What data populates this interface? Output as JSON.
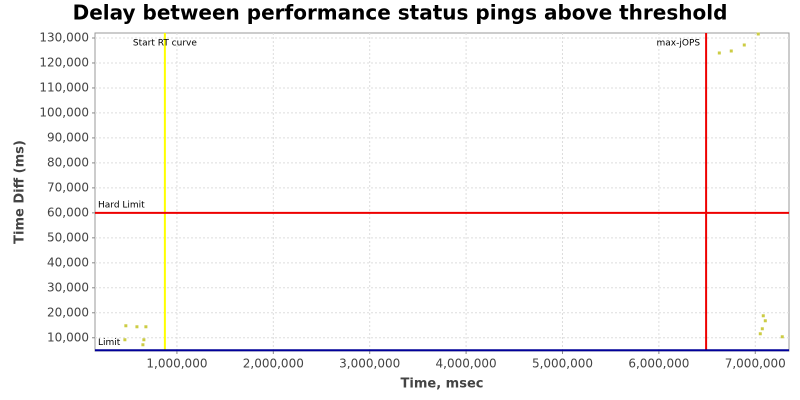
{
  "chart_data": {
    "type": "scatter",
    "title": "Delay between performance status pings above threshold",
    "x_label": "Time, msec",
    "y_label": "Time Diff (ms)",
    "xlim": [
      150000,
      7350000
    ],
    "ylim": [
      4700,
      132000
    ],
    "xticks": [
      {
        "value": 1000000,
        "label": "1,000,000"
      },
      {
        "value": 2000000,
        "label": "2,000,000"
      },
      {
        "value": 3000000,
        "label": "3,000,000"
      },
      {
        "value": 4000000,
        "label": "4,000,000"
      },
      {
        "value": 5000000,
        "label": "5,000,000"
      },
      {
        "value": 6000000,
        "label": "6,000,000"
      },
      {
        "value": 7000000,
        "label": "7,000,000"
      }
    ],
    "yticks": [
      {
        "value": 10000,
        "label": "10,000"
      },
      {
        "value": 20000,
        "label": "20,000"
      },
      {
        "value": 30000,
        "label": "30,000"
      },
      {
        "value": 40000,
        "label": "40,000"
      },
      {
        "value": 50000,
        "label": "50,000"
      },
      {
        "value": 60000,
        "label": "60,000"
      },
      {
        "value": 70000,
        "label": "70,000"
      },
      {
        "value": 80000,
        "label": "80,000"
      },
      {
        "value": 90000,
        "label": "90,000"
      },
      {
        "value": 100000,
        "label": "100,000"
      },
      {
        "value": 110000,
        "label": "110,000"
      },
      {
        "value": 120000,
        "label": "120,000"
      },
      {
        "value": 130000,
        "label": "130,000"
      }
    ],
    "grid": true,
    "color": "#cccc44",
    "x": [
      470000,
      585000,
      678000,
      460000,
      657000,
      647000,
      6627000,
      6751000,
      6886000,
      7031000,
      7083000,
      7104000,
      7073000,
      7052000,
      7280000
    ],
    "values": [
      14800,
      14400,
      14400,
      9200,
      9200,
      7200,
      124000,
      124800,
      127200,
      131600,
      18800,
      16800,
      13600,
      11600,
      10400
    ],
    "reference_lines": [
      {
        "label": "Start RT curve",
        "axis": "x",
        "value": 875000,
        "color": "#ffff00"
      },
      {
        "label": "max-jOPS",
        "axis": "x",
        "value": 6490000,
        "color": "#ee0000"
      },
      {
        "label": "Hard Limit",
        "axis": "y",
        "value": 60000,
        "color": "#ee0000"
      },
      {
        "label": "Limit",
        "axis": "y",
        "value": 5000,
        "color": "#000099"
      }
    ]
  }
}
